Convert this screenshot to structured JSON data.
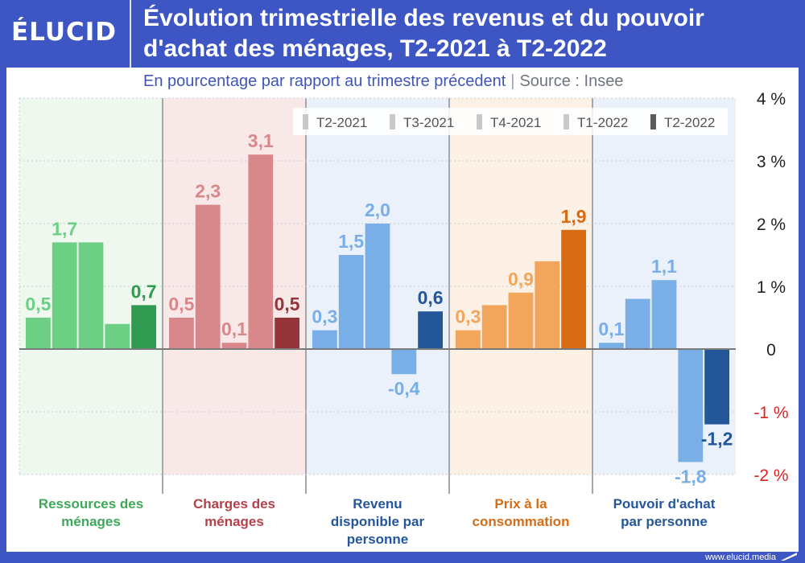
{
  "header": {
    "logo": "ÉLUCID",
    "title_line1": "Évolution trimestrielle des revenus et du pouvoir",
    "title_line2": "d'achat des ménages, T2-2021 à T2-2022"
  },
  "subtitle": {
    "text": "En pourcentage par rapport au trimestre précedent",
    "separator": "|",
    "source": "Source : Insee"
  },
  "footer": {
    "url": "www.elucid.media"
  },
  "chart_data": {
    "type": "bar",
    "title": "Évolution trimestrielle des revenus et du pouvoir d'achat des ménages, T2-2021 à T2-2022",
    "subtitle": "En pourcentage par rapport au trimestre précedent",
    "ylim": [
      -2,
      4
    ],
    "yticks": [
      {
        "value": 4,
        "label": "4 %"
      },
      {
        "value": 3,
        "label": "3 %"
      },
      {
        "value": 2,
        "label": "2 %"
      },
      {
        "value": 1,
        "label": "1 %"
      },
      {
        "value": 0,
        "label": "0"
      },
      {
        "value": -1,
        "label": "-1 %"
      },
      {
        "value": -2,
        "label": "-2 %"
      }
    ],
    "negative_tick_color": "#e02020",
    "grid": true,
    "legend_position": "top-right",
    "legend": [
      "T2-2021",
      "T3-2021",
      "T4-2021",
      "T1-2022",
      "T2-2022"
    ],
    "legend_colors": [
      "#c9c9c9",
      "#c9c9c9",
      "#c9c9c9",
      "#c9c9c9",
      "#5a5a5a"
    ],
    "groups": [
      {
        "label_lines": [
          "Ressources des",
          "ménages"
        ],
        "values": [
          0.5,
          1.7,
          1.7,
          0.4,
          0.7
        ],
        "value_labels": [
          "0,5",
          "1,7",
          "",
          "",
          "0,7"
        ],
        "bar_color": "#6ccf83",
        "last_color": "#2f9a50",
        "label_color": "#6ccf83",
        "last_label_color": "#2f9a50",
        "bg_color": "#eef8ee",
        "category_color": "#3ea85a"
      },
      {
        "label_lines": [
          "Charges des",
          "ménages"
        ],
        "values": [
          0.5,
          2.3,
          0.1,
          3.1,
          0.5
        ],
        "value_labels": [
          "0,5",
          "2,3",
          "0,1",
          "3,1",
          "0,5"
        ],
        "bar_color": "#d8878b",
        "last_color": "#96343c",
        "label_color": "#d8878b",
        "last_label_color": "#96343c",
        "bg_color": "#f9e8e8",
        "category_color": "#b5404a"
      },
      {
        "label_lines": [
          "Revenu",
          "disponible par",
          "personne"
        ],
        "values": [
          0.3,
          1.5,
          2.0,
          -0.4,
          0.6
        ],
        "value_labels": [
          "0,3",
          "1,5",
          "2,0",
          "-0,4",
          "0,6"
        ],
        "bar_color": "#7aaee6",
        "last_color": "#24569a",
        "label_color": "#7aaee6",
        "last_label_color": "#24569a",
        "bg_color": "#eaf1fb",
        "category_color": "#24569a"
      },
      {
        "label_lines": [
          "Prix à la",
          "consommation"
        ],
        "values": [
          0.3,
          0.7,
          0.9,
          1.4,
          1.9
        ],
        "value_labels": [
          "0,3",
          "",
          "0,9",
          "",
          "1,9"
        ],
        "bar_color": "#f2a65c",
        "last_color": "#d86c14",
        "label_color": "#f2a65c",
        "last_label_color": "#d86c14",
        "bg_color": "#fdf0e4",
        "category_color": "#d86c14"
      },
      {
        "label_lines": [
          "Pouvoir d'achat",
          "par personne"
        ],
        "values": [
          0.1,
          0.8,
          1.1,
          -1.8,
          -1.2
        ],
        "value_labels": [
          "0,1",
          "",
          "1,1",
          "-1,8",
          "-1,2"
        ],
        "bar_color": "#7aaee6",
        "last_color": "#24569a",
        "label_color": "#7aaee6",
        "last_label_color": "#24569a",
        "bg_color": "#eaf1fb",
        "category_color": "#24569a"
      }
    ]
  }
}
